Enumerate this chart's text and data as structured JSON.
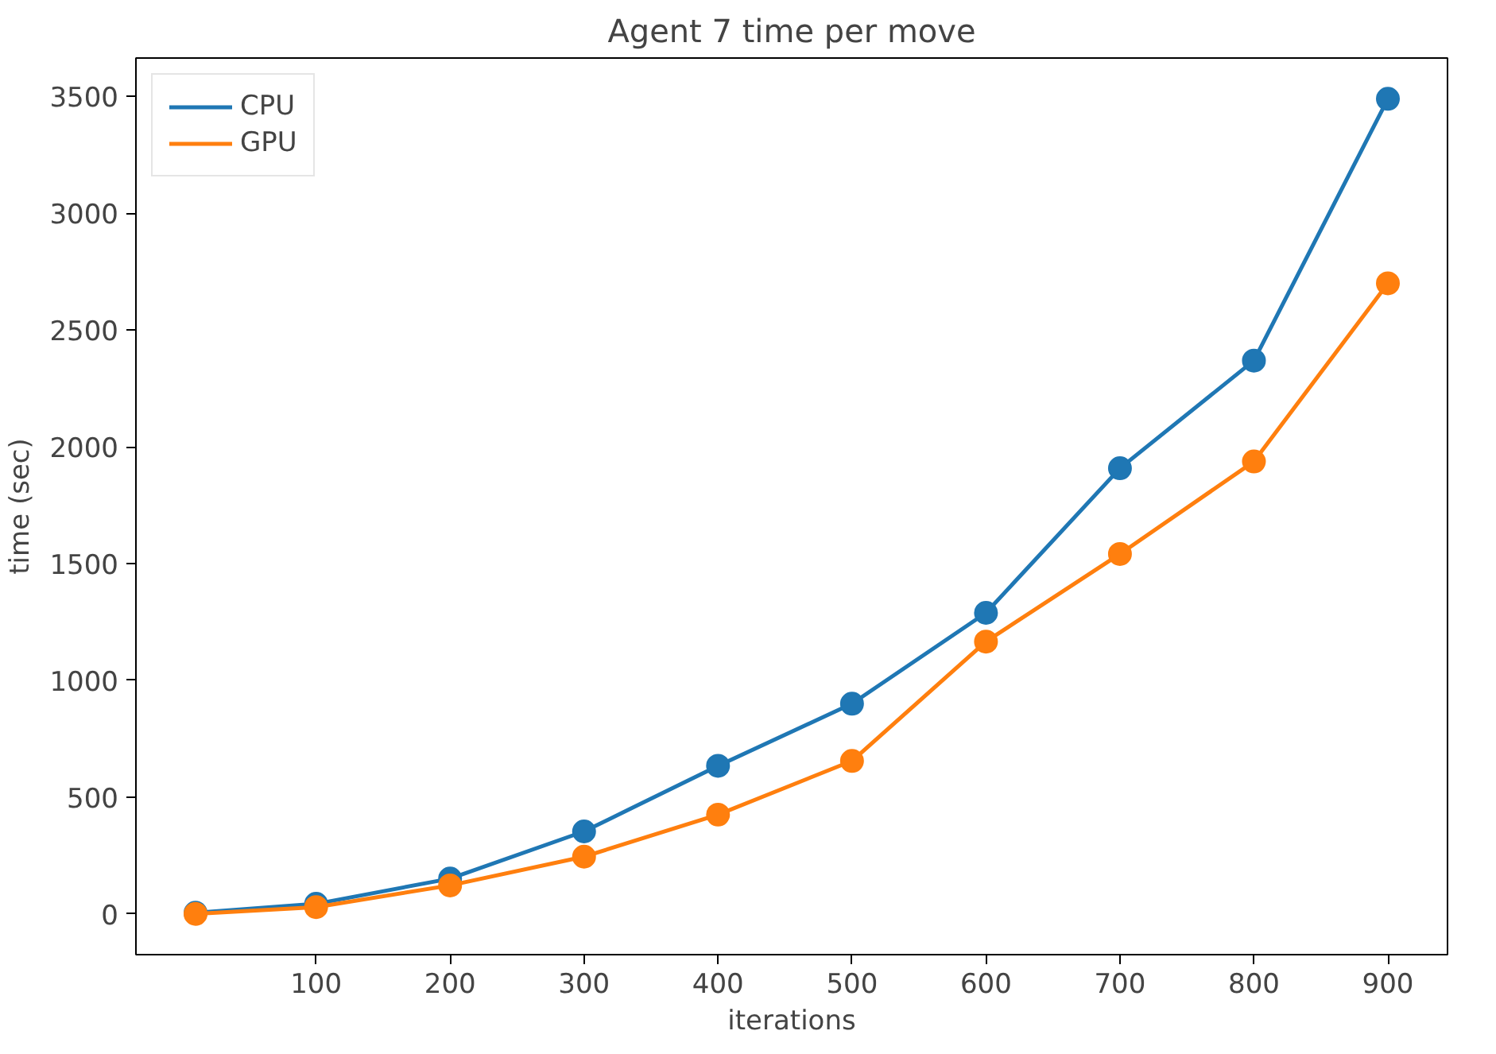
{
  "chart_data": {
    "type": "line",
    "title": "Agent 7 time per move",
    "xlabel": "iterations",
    "ylabel": "time (sec)",
    "x": [
      10,
      100,
      200,
      300,
      400,
      500,
      600,
      700,
      800,
      900
    ],
    "series": [
      {
        "name": "CPU",
        "color": "#1f77b4",
        "values": [
          5,
          43,
          151,
          353,
          634,
          900,
          1289,
          1908,
          2369,
          3490
        ]
      },
      {
        "name": "GPU",
        "color": "#ff7f0e",
        "values": [
          0,
          29,
          122,
          245,
          425,
          655,
          1166,
          1541,
          1937,
          2700
        ]
      }
    ],
    "xlim": [
      -34.5,
      944.5
    ],
    "ylim": [
      -174.5,
      3664.5
    ],
    "xticks": [
      100,
      200,
      300,
      400,
      500,
      600,
      700,
      800,
      900
    ],
    "yticks": [
      0,
      500,
      1000,
      1500,
      2000,
      2500,
      3000,
      3500
    ],
    "grid": false,
    "legend": "top left",
    "marker": "circle",
    "line_style": "solid"
  }
}
